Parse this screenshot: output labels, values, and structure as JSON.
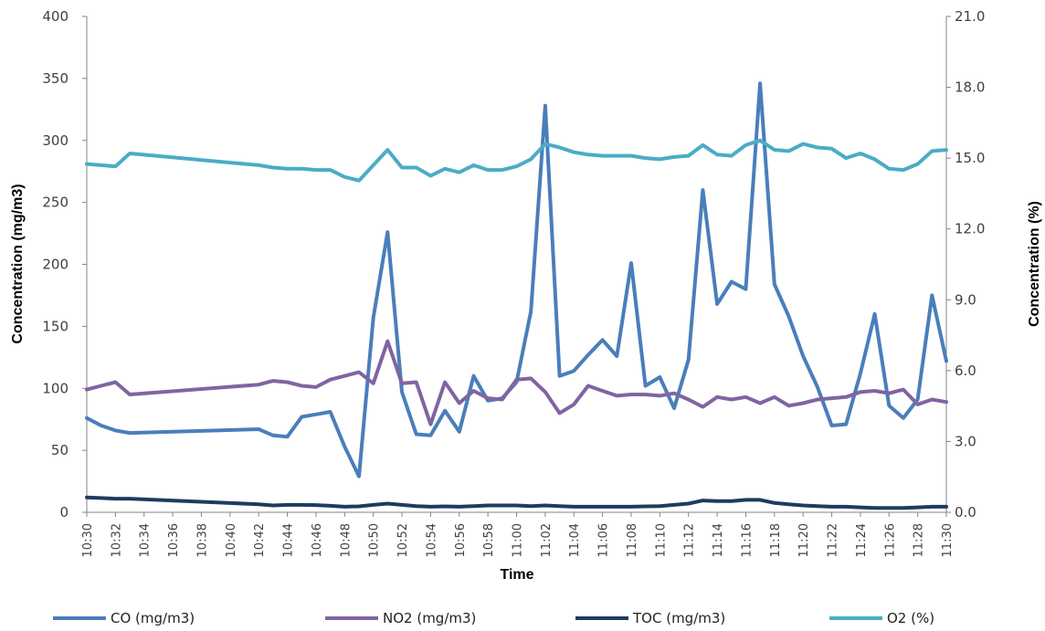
{
  "chart_data": {
    "type": "line",
    "title": "",
    "xlabel": "Time",
    "ylabel": "Concentration (mg/m3)",
    "y2label": "Concentration (%)",
    "ylim": [
      0,
      400
    ],
    "y2lim": [
      0,
      21
    ],
    "yticks": [
      "0",
      "50",
      "100",
      "150",
      "200",
      "250",
      "300",
      "350",
      "400"
    ],
    "y2ticks": [
      "0.0",
      "3.0",
      "6.0",
      "9.0",
      "12.0",
      "15.0",
      "18.0",
      "21.0"
    ],
    "grid": false,
    "legend_position": "bottom",
    "x": [
      "10:30",
      "10:31",
      "10:32",
      "10:33",
      "10:42",
      "10:43",
      "10:44",
      "10:45",
      "10:46",
      "10:47",
      "10:48",
      "10:49",
      "10:50",
      "10:51",
      "10:52",
      "10:53",
      "10:54",
      "10:55",
      "10:56",
      "10:57",
      "10:58",
      "10:59",
      "11:00",
      "11:01",
      "11:02",
      "11:03",
      "11:04",
      "11:05",
      "11:06",
      "11:07",
      "11:08",
      "11:09",
      "11:10",
      "11:11",
      "11:12",
      "11:13",
      "11:14",
      "11:15",
      "11:16",
      "11:17",
      "11:18",
      "11:19",
      "11:20",
      "11:21",
      "11:22",
      "11:23",
      "11:24",
      "11:25",
      "11:26",
      "11:27",
      "11:28",
      "11:29",
      "11:30"
    ],
    "xtick_labels": [
      "10:30",
      "10:32",
      "10:34",
      "10:36",
      "10:38",
      "10:40",
      "10:42",
      "10:44",
      "10:46",
      "10:48",
      "10:50",
      "10:52",
      "10:54",
      "10:56",
      "10:58",
      "11:00",
      "11:02",
      "11:04",
      "11:06",
      "11:08",
      "11:10",
      "11:12",
      "11:14",
      "11:16",
      "11:18",
      "11:20",
      "11:22",
      "11:24",
      "11:26",
      "11:28",
      "11:30"
    ],
    "series": [
      {
        "name": "CO (mg/m3)",
        "axis": "left",
        "color": "#4a7ebb",
        "values": [
          76,
          70,
          66,
          64,
          67,
          62,
          61,
          77,
          79,
          81,
          53,
          29,
          157,
          226,
          97,
          63,
          62,
          82,
          65,
          110,
          90,
          92,
          105,
          162,
          328,
          110,
          114,
          127,
          139,
          126,
          201,
          102,
          109,
          84,
          123,
          260,
          168,
          186,
          180,
          346,
          184,
          158,
          126,
          101,
          70,
          71,
          112,
          160,
          86,
          76,
          91,
          175,
          122
        ]
      },
      {
        "name": "NO2 (mg/m3)",
        "axis": "left",
        "color": "#8064a2",
        "values": [
          99,
          102,
          105,
          95,
          103,
          106,
          105,
          102,
          101,
          107,
          110,
          113,
          104,
          138,
          104,
          105,
          71,
          105,
          88,
          98,
          92,
          91,
          107,
          108,
          97,
          80,
          87,
          102,
          98,
          94,
          95,
          95,
          94,
          96,
          91,
          85,
          93,
          91,
          93,
          88,
          93,
          86,
          88,
          91,
          92,
          93,
          97,
          98,
          96,
          99,
          87,
          91,
          89
        ]
      },
      {
        "name": "TOC (mg/m3)",
        "axis": "left",
        "color": "#1f3b5f",
        "values": [
          12,
          11.5,
          11,
          11,
          6.5,
          5.5,
          6,
          6,
          5.8,
          5.2,
          4.5,
          4.8,
          6,
          7,
          6,
          5,
          4.5,
          4.8,
          4.5,
          5,
          5.5,
          5.5,
          5.5,
          5,
          5.5,
          5,
          4.5,
          4.5,
          4.5,
          4.5,
          4.5,
          4.8,
          5,
          6,
          7,
          9.5,
          9,
          9,
          10,
          10,
          7.5,
          6.5,
          5.5,
          5,
          4.5,
          4.5,
          4,
          3.5,
          3.5,
          3.5,
          4,
          4.5,
          4.5
        ]
      },
      {
        "name": "O2 (%)",
        "axis": "right",
        "color": "#4bacc6",
        "values": [
          14.75,
          14.7,
          14.65,
          15.2,
          14.7,
          14.6,
          14.55,
          14.55,
          14.5,
          14.5,
          14.2,
          14.05,
          14.7,
          15.35,
          14.6,
          14.6,
          14.25,
          14.55,
          14.4,
          14.7,
          14.5,
          14.5,
          14.65,
          14.95,
          15.6,
          15.45,
          15.25,
          15.15,
          15.1,
          15.1,
          15.1,
          15,
          14.95,
          15.05,
          15.1,
          15.55,
          15.15,
          15.1,
          15.55,
          15.75,
          15.35,
          15.3,
          15.6,
          15.45,
          15.4,
          15,
          15.2,
          14.95,
          14.55,
          14.5,
          14.75,
          15.3,
          15.35
        ]
      }
    ]
  }
}
